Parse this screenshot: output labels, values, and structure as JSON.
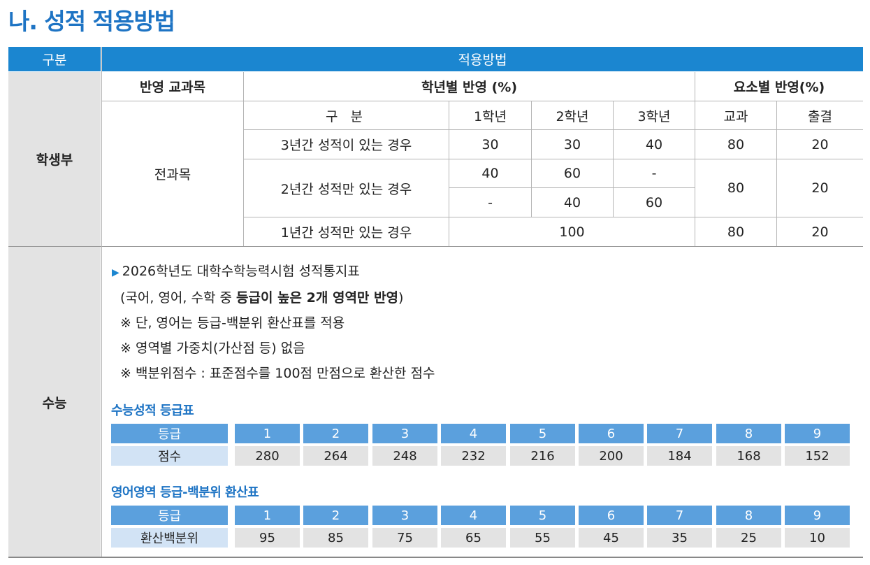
{
  "title": "나. 성적 적용방법",
  "header": {
    "col1": "구분",
    "col2": "적용방법"
  },
  "hsb": {
    "category": "학생부",
    "head_subject": "반영 교과목",
    "head_year": "학년별 반영 (%)",
    "head_element": "요소별 반영(%)",
    "subject": "전과목",
    "sub_head": {
      "gubun": "구 분",
      "y1": "1학년",
      "y2": "2학년",
      "y3": "3학년",
      "kyogwa": "교과",
      "chulgyeol": "출결"
    },
    "row3": {
      "label": "3년간 성적이 있는 경우",
      "y1": "30",
      "y2": "30",
      "y3": "40",
      "kyogwa": "80",
      "chulgyeol": "20"
    },
    "row2": {
      "label": "2년간 성적만 있는 경우",
      "a_y1": "40",
      "a_y2": "60",
      "a_y3": "-",
      "b_y1": "-",
      "b_y2": "40",
      "b_y3": "60",
      "kyogwa": "80",
      "chulgyeol": "20"
    },
    "row1": {
      "label": "1년간 성적만 있는 경우",
      "all": "100",
      "kyogwa": "80",
      "chulgyeol": "20"
    }
  },
  "suneung": {
    "category": "수능",
    "line1": "2026학년도 대학수학능력시험 성적통지표",
    "line2_pre": "(국어, 영어, 수학 중 ",
    "line2_bold": "등급이 높은 2개 영역만 반영",
    "line2_post": ")",
    "note1": "※ 단, 영어는 등급-백분위 환산표를 적용",
    "note2": "※ 영역별 가중치(가산점 등) 없음",
    "note3": "※ 백분위점수 : 표준점수를 100점 만점으로 환산한 점수",
    "table1_title": "수능성적 등급표",
    "table1": {
      "head_label": "등급",
      "row_label": "점수",
      "grades": [
        "1",
        "2",
        "3",
        "4",
        "5",
        "6",
        "7",
        "8",
        "9"
      ],
      "values": [
        "280",
        "264",
        "248",
        "232",
        "216",
        "200",
        "184",
        "168",
        "152"
      ]
    },
    "table2_title": "영어영역 등급-백분위 환산표",
    "table2": {
      "head_label": "등급",
      "row_label": "환산백분위",
      "grades": [
        "1",
        "2",
        "3",
        "4",
        "5",
        "6",
        "7",
        "8",
        "9"
      ],
      "values": [
        "95",
        "85",
        "75",
        "65",
        "55",
        "45",
        "35",
        "25",
        "10"
      ]
    }
  }
}
